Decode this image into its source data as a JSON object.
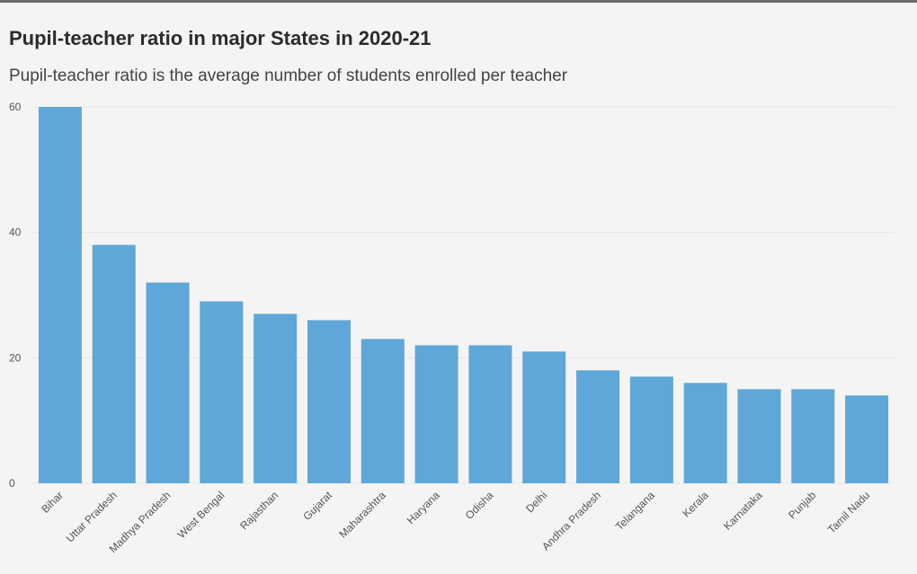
{
  "title": "Pupil-teacher ratio in major States in 2020-21",
  "subtitle": "Pupil-teacher ratio is the average number of students enrolled per teacher",
  "colors": {
    "bar": "#5ea7d8",
    "grid": "#e6e6e6",
    "top_rule": "#6b6b6b"
  },
  "chart_data": {
    "type": "bar",
    "categories": [
      "Bihar",
      "Uttar Pradesh",
      "Madhya Pradesh",
      "West Bengal",
      "Rajasthan",
      "Gujarat",
      "Maharashtra",
      "Haryana",
      "Odisha",
      "Delhi",
      "Andhra Pradesh",
      "Telangana",
      "Kerala",
      "Karnataka",
      "Punjab",
      "Tamil Nadu"
    ],
    "values": [
      60,
      38,
      32,
      29,
      27,
      26,
      23,
      22,
      22,
      21,
      18,
      17,
      16,
      15,
      15,
      14
    ],
    "y_ticks": [
      "0",
      "20",
      "40",
      "60"
    ],
    "ylim": [
      0,
      60
    ],
    "grid": true,
    "xlabel": "",
    "ylabel": ""
  }
}
